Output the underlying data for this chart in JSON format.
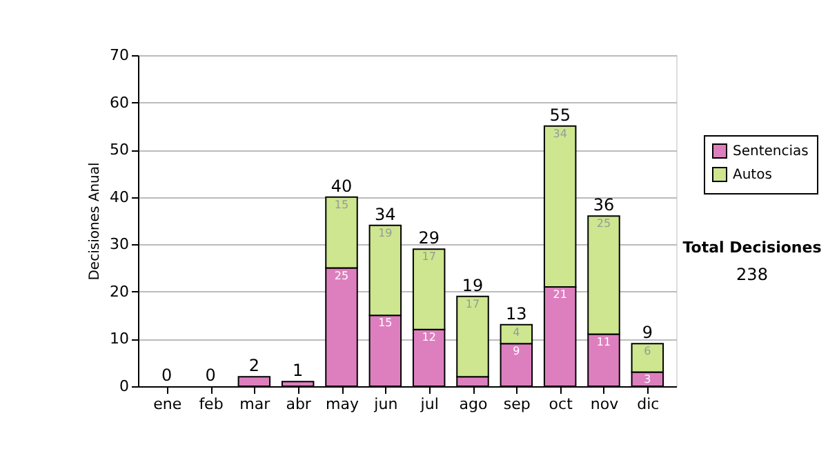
{
  "chart_data": {
    "type": "bar",
    "stacked": true,
    "ylabel": "Decisiones Anual",
    "categories": [
      "ene",
      "feb",
      "mar",
      "abr",
      "may",
      "jun",
      "jul",
      "ago",
      "sep",
      "oct",
      "nov",
      "dic"
    ],
    "series": [
      {
        "name": "Sentencias",
        "color": "#dd7fbf",
        "values": [
          0,
          0,
          2,
          1,
          25,
          15,
          12,
          2,
          9,
          21,
          11,
          3
        ],
        "value_labels": [
          null,
          null,
          null,
          null,
          "25",
          "15",
          "12",
          null,
          "9",
          "21",
          "11",
          "3"
        ]
      },
      {
        "name": "Autos",
        "color": "#cde68f",
        "values": [
          0,
          0,
          0,
          0,
          15,
          19,
          17,
          17,
          4,
          34,
          25,
          6
        ],
        "value_labels": [
          null,
          null,
          null,
          null,
          "15",
          "19",
          "17",
          "17",
          "4",
          "34",
          "25",
          "6"
        ]
      }
    ],
    "totals": [
      "0",
      "0",
      "2",
      "1",
      "40",
      "34",
      "29",
      "19",
      "13",
      "55",
      "36",
      "9"
    ],
    "ylim": [
      0,
      70
    ],
    "yticks": [
      0,
      10,
      20,
      30,
      40,
      50,
      60,
      70
    ],
    "grid": "y",
    "legend": "right",
    "annotations": [
      "Total Decisiones",
      "238"
    ]
  }
}
